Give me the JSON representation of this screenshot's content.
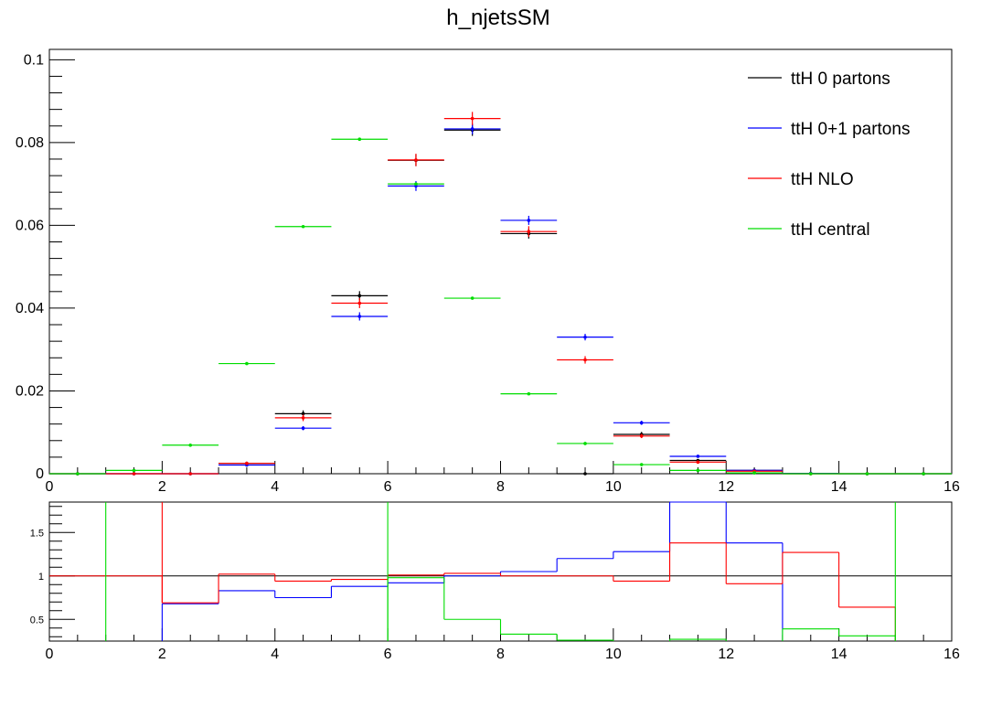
{
  "chart_data": [
    {
      "type": "scatter",
      "title": "h_njetsSM",
      "xlim": [
        0,
        16
      ],
      "ylim": [
        0,
        0.1025
      ],
      "x_ticks": [
        "0",
        "2",
        "4",
        "6",
        "8",
        "10",
        "12",
        "14",
        "16"
      ],
      "y_ticks": [
        "0",
        "0.02",
        "0.04",
        "0.06",
        "0.08",
        "0.1"
      ],
      "y_tick_values": [
        0,
        0.02,
        0.04,
        0.06,
        0.08,
        0.1
      ],
      "legend_position": "top-right",
      "x_bin_centers": [
        0.5,
        1.5,
        2.5,
        3.5,
        4.5,
        5.5,
        6.5,
        7.5,
        8.5,
        9.5,
        10.5,
        11.5,
        12.5,
        13.5,
        14.5,
        15.5
      ],
      "series": [
        {
          "name": "ttH 0 partons",
          "color": "#000000",
          "values": [
            0,
            0,
            0,
            0.0025,
            0.0145,
            0.043,
            0.0757,
            0.083,
            0.058,
            0,
            0.0095,
            0.0032,
            0.0008,
            0,
            0,
            0
          ],
          "errors": [
            0,
            0,
            0,
            0.0004,
            0.0008,
            0.0011,
            0.0014,
            0.0014,
            0.0012,
            0,
            0.0006,
            0.0003,
            0.0002,
            0,
            0,
            0
          ]
        },
        {
          "name": "ttH 0+1 partons",
          "color": "#0000ff",
          "values": [
            0,
            0,
            0,
            0.0021,
            0.011,
            0.038,
            0.0695,
            0.0833,
            0.0612,
            0.033,
            0.0123,
            0.0042,
            0.0008,
            0.0001,
            0,
            0
          ],
          "errors": [
            0,
            0,
            0,
            0.0003,
            0.0005,
            0.001,
            0.0012,
            0.0013,
            0.0011,
            0.0008,
            0.0005,
            0.0003,
            0.0001,
            0,
            0,
            0
          ]
        },
        {
          "name": "ttH NLO",
          "color": "#ff0000",
          "values": [
            0,
            0,
            0,
            0.0025,
            0.0135,
            0.0412,
            0.0758,
            0.0858,
            0.0585,
            0.0275,
            0.0091,
            0.0028,
            0.0006,
            0,
            0,
            0
          ],
          "errors": [
            0,
            0,
            0,
            0.0004,
            0.0008,
            0.0012,
            0.0015,
            0.0016,
            0.0013,
            0.0009,
            0.0005,
            0.0003,
            0.0002,
            0,
            0,
            0
          ]
        },
        {
          "name": "ttH central",
          "color": "#00dd00",
          "values": [
            0,
            0.0008,
            0.0069,
            0.0266,
            0.0597,
            0.0808,
            0.07,
            0.0424,
            0.0193,
            0.0073,
            0.0022,
            0.0008,
            0.0002,
            0,
            0,
            0
          ],
          "errors": [
            0,
            0,
            0,
            0,
            0,
            0,
            0,
            0,
            0,
            0,
            0,
            0,
            0,
            0,
            0,
            0
          ]
        }
      ]
    },
    {
      "type": "line",
      "xlim": [
        0,
        16
      ],
      "ylim": [
        0.25,
        1.85
      ],
      "x_ticks": [
        "0",
        "2",
        "4",
        "6",
        "8",
        "10",
        "12",
        "14",
        "16"
      ],
      "y_ticks": [
        "0.5",
        "1",
        "1.5"
      ],
      "y_tick_values": [
        0.5,
        1,
        1.5
      ],
      "reference_line": 1,
      "bin_edges": [
        0,
        1,
        2,
        3,
        4,
        5,
        6,
        7,
        8,
        9,
        10,
        11,
        12,
        13,
        14,
        15,
        16
      ],
      "series": [
        {
          "color": "#000000",
          "values": [
            null,
            null,
            null,
            null,
            null,
            null,
            null,
            null,
            null,
            null,
            null,
            null,
            null,
            null,
            null,
            null
          ]
        },
        {
          "color": "#0000ff",
          "values": [
            null,
            null,
            0.68,
            0.83,
            0.75,
            0.88,
            0.92,
            1.0,
            1.05,
            1.2,
            1.28,
            1.9,
            1.38,
            null,
            null,
            null
          ]
        },
        {
          "color": "#ff0000",
          "values": [
            1.0,
            1.0,
            0.69,
            1.02,
            0.94,
            0.96,
            1.01,
            1.03,
            1.0,
            1.0,
            0.94,
            1.38,
            0.91,
            1.27,
            0.64,
            null
          ]
        },
        {
          "color": "#00dd00",
          "values": [
            null,
            null,
            null,
            null,
            null,
            null,
            0.98,
            0.5,
            0.33,
            0.26,
            null,
            0.27,
            null,
            0.39,
            0.31,
            null
          ]
        }
      ]
    }
  ]
}
